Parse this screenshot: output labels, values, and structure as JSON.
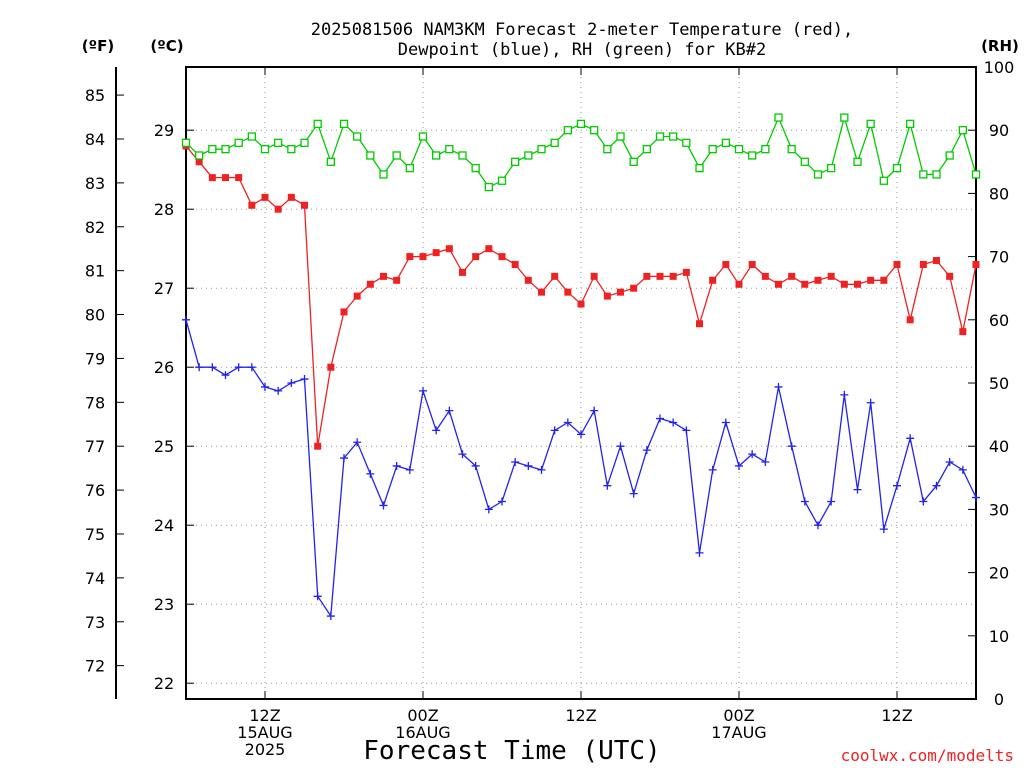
{
  "chart_data": {
    "type": "line",
    "title_line1": "2025081506 NAM3KM Forecast 2-meter Temperature (red),",
    "title_line2": "Dewpoint (blue), RH (green) for KB#2",
    "xlabel": "Forecast Time (UTC)",
    "unit_f": "(ºF)",
    "unit_c": "(ºC)",
    "unit_rh": "(RH)",
    "watermark": "coolwx.com/modelts",
    "x_hours_start": 6,
    "x_hours_end": 66,
    "x_ticks": [
      {
        "hour": 12,
        "line1": "12Z",
        "line2": "15AUG",
        "line3": "2025"
      },
      {
        "hour": 24,
        "line1": "00Z",
        "line2": "16AUG",
        "line3": ""
      },
      {
        "hour": 36,
        "line1": "12Z",
        "line2": "",
        "line3": ""
      },
      {
        "hour": 48,
        "line1": "00Z",
        "line2": "17AUG",
        "line3": ""
      },
      {
        "hour": 60,
        "line1": "12Z",
        "line2": "",
        "line3": ""
      }
    ],
    "c_range": [
      21.8,
      29.8
    ],
    "c_ticks": [
      "22",
      "23",
      "24",
      "25",
      "26",
      "27",
      "28",
      "29"
    ],
    "f_ticks": [
      "72",
      "73",
      "74",
      "75",
      "76",
      "77",
      "78",
      "79",
      "80",
      "81",
      "82",
      "83",
      "84",
      "85"
    ],
    "rh_range": [
      0,
      100
    ],
    "rh_ticks": [
      "0",
      "10",
      "20",
      "30",
      "40",
      "50",
      "60",
      "70",
      "80",
      "90",
      "100"
    ],
    "grid": true,
    "colors": {
      "temperature": "#ee2222",
      "dewpoint": "#2222ee",
      "rh": "#00cc00"
    },
    "series": [
      {
        "name": "Temperature",
        "axis": "celsius",
        "marker": "filled-square",
        "color": "#ee2222",
        "values": [
          28.8,
          28.6,
          28.4,
          28.4,
          28.4,
          28.05,
          28.15,
          28.0,
          28.15,
          28.05,
          25.0,
          26.0,
          26.7,
          26.9,
          27.05,
          27.15,
          27.1,
          27.4,
          27.4,
          27.45,
          27.5,
          27.2,
          27.4,
          27.5,
          27.4,
          27.3,
          27.1,
          26.95,
          27.15,
          26.95,
          26.8,
          27.15,
          26.9,
          26.95,
          27.0,
          27.15,
          27.15,
          27.15,
          27.2,
          26.55,
          27.1,
          27.3,
          27.05,
          27.3,
          27.15,
          27.05,
          27.15,
          27.05,
          27.1,
          27.15,
          27.05,
          27.05,
          27.1,
          27.1,
          27.3,
          26.6,
          27.3,
          27.35,
          27.15,
          26.45,
          27.3
        ],
        "x_hours": [
          6,
          7,
          8,
          9,
          10,
          11,
          12,
          13,
          14,
          15,
          16,
          17,
          18,
          19,
          20,
          21,
          22,
          23,
          24,
          25,
          26,
          27,
          28,
          29,
          30,
          31,
          32,
          33,
          34,
          35,
          36,
          37,
          38,
          39,
          40,
          41,
          42,
          43,
          44,
          45,
          46,
          47,
          48,
          49,
          50,
          51,
          52,
          53,
          54,
          55,
          56,
          57,
          58,
          59,
          60,
          61,
          62,
          63,
          64,
          65,
          66
        ]
      },
      {
        "name": "Dewpoint",
        "axis": "celsius",
        "marker": "plus",
        "color": "#2222ee",
        "values": [
          26.6,
          26.0,
          26.0,
          25.9,
          26.0,
          26.0,
          25.75,
          25.7,
          25.8,
          25.85,
          23.1,
          22.85,
          24.85,
          25.05,
          24.65,
          24.25,
          24.75,
          24.7,
          25.7,
          25.2,
          25.45,
          24.9,
          24.75,
          24.2,
          24.3,
          24.8,
          24.75,
          24.7,
          25.2,
          25.3,
          25.15,
          25.45,
          24.5,
          25.0,
          24.4,
          24.95,
          25.35,
          25.3,
          25.2,
          23.65,
          24.7,
          25.3,
          24.75,
          24.9,
          24.8,
          25.75,
          25.0,
          24.3,
          24.0,
          24.3,
          25.65,
          24.45,
          25.55,
          23.95,
          24.5,
          25.1,
          24.3,
          24.5,
          24.8,
          24.7,
          24.35
        ],
        "x_hours": [
          6,
          7,
          8,
          9,
          10,
          11,
          12,
          13,
          14,
          15,
          16,
          17,
          18,
          19,
          20,
          21,
          22,
          23,
          24,
          25,
          26,
          27,
          28,
          29,
          30,
          31,
          32,
          33,
          34,
          35,
          36,
          37,
          38,
          39,
          40,
          41,
          42,
          43,
          44,
          45,
          46,
          47,
          48,
          49,
          50,
          51,
          52,
          53,
          54,
          55,
          56,
          57,
          58,
          59,
          60,
          61,
          62,
          63,
          64,
          65,
          66
        ]
      },
      {
        "name": "RH",
        "axis": "rh",
        "marker": "open-square",
        "color": "#00cc00",
        "values": [
          88,
          86,
          87,
          87,
          88,
          89,
          87,
          88,
          87,
          88,
          91,
          85,
          91,
          89,
          86,
          83,
          86,
          84,
          89,
          86,
          87,
          86,
          84,
          81,
          82,
          85,
          86,
          87,
          88,
          90,
          91,
          90,
          87,
          89,
          85,
          87,
          89,
          89,
          88,
          84,
          87,
          88,
          87,
          86,
          87,
          92,
          87,
          85,
          83,
          84,
          92,
          85,
          91,
          82,
          84,
          91,
          83,
          83,
          86,
          90,
          83
        ],
        "x_hours": [
          6,
          7,
          8,
          9,
          10,
          11,
          12,
          13,
          14,
          15,
          16,
          17,
          18,
          19,
          20,
          21,
          22,
          23,
          24,
          25,
          26,
          27,
          28,
          29,
          30,
          31,
          32,
          33,
          34,
          35,
          36,
          37,
          38,
          39,
          40,
          41,
          42,
          43,
          44,
          45,
          46,
          47,
          48,
          49,
          50,
          51,
          52,
          53,
          54,
          55,
          56,
          57,
          58,
          59,
          60,
          61,
          62,
          63,
          64,
          65,
          66
        ]
      }
    ]
  }
}
